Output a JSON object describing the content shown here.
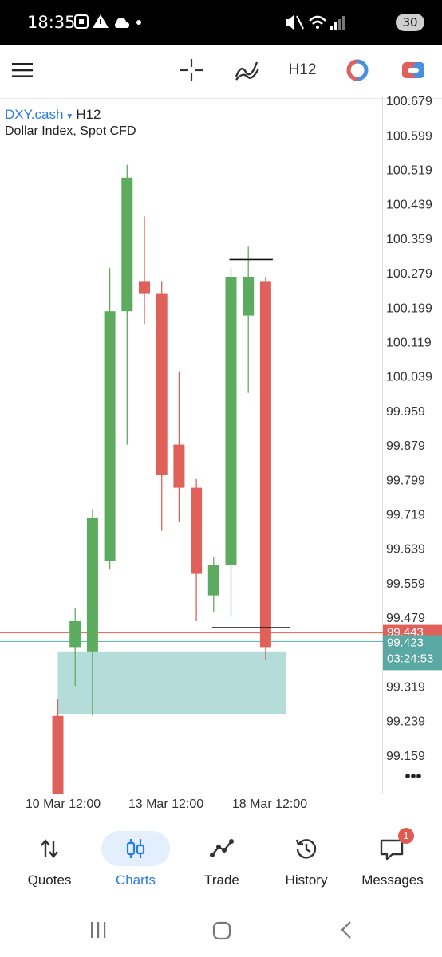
{
  "status_bar": {
    "time": "18:35",
    "battery": "30"
  },
  "toolbar": {
    "timeframe": "H12",
    "icons": [
      "menu-icon",
      "crosshair-icon",
      "indicators-icon",
      "chart-type-icon",
      "trade-toggle-icon"
    ]
  },
  "symbol": {
    "name": "DXY.cash",
    "timeframe": "H12",
    "description": "Dollar Index, Spot CFD"
  },
  "chart_data": {
    "type": "candlestick",
    "price_labels": [
      "100.679",
      "100.599",
      "100.519",
      "100.439",
      "100.359",
      "100.279",
      "100.199",
      "100.119",
      "100.039",
      "99.959",
      "99.879",
      "99.799",
      "99.719",
      "99.639",
      "99.559",
      "99.479",
      "99.319",
      "99.239",
      "99.159"
    ],
    "ylim": [
      99.07,
      100.68
    ],
    "x_labels": [
      "10 Mar 12:00",
      "13 Mar 12:00",
      "18 Mar 12:00"
    ],
    "bid_label": "99.443",
    "ask_label": "99.423",
    "countdown": "03:24:53",
    "more_menu": "•••",
    "candles": [
      {
        "open": 99.25,
        "high": 99.29,
        "low": 99.07,
        "close": 99.07
      },
      {
        "open": 99.41,
        "high": 99.5,
        "low": 99.32,
        "close": 99.47
      },
      {
        "open": 99.4,
        "high": 99.73,
        "low": 99.25,
        "close": 99.71
      },
      {
        "open": 99.61,
        "high": 100.29,
        "low": 99.59,
        "close": 100.19
      },
      {
        "open": 100.19,
        "high": 100.53,
        "low": 99.88,
        "close": 100.5
      },
      {
        "open": 100.26,
        "high": 100.41,
        "low": 100.16,
        "close": 100.23
      },
      {
        "open": 100.23,
        "high": 100.26,
        "low": 99.68,
        "close": 99.81
      },
      {
        "open": 99.88,
        "high": 100.05,
        "low": 99.7,
        "close": 99.78
      },
      {
        "open": 99.78,
        "high": 99.8,
        "low": 99.47,
        "close": 99.58
      },
      {
        "open": 99.53,
        "high": 99.62,
        "low": 99.49,
        "close": 99.6
      },
      {
        "open": 99.6,
        "high": 100.29,
        "low": 99.48,
        "close": 100.27
      },
      {
        "open": 100.18,
        "high": 100.34,
        "low": 100.0,
        "close": 100.27
      },
      {
        "open": 100.26,
        "high": 100.27,
        "low": 99.38,
        "close": 99.41
      }
    ],
    "zone": {
      "top": 99.4,
      "bottom": 99.255,
      "from_candle": 0,
      "to_candle": 13
    },
    "levels": [
      {
        "price": 100.31,
        "from_candle": 10,
        "to_candle": 12
      },
      {
        "price": 99.455,
        "from_candle": 9,
        "to_candle": 13
      }
    ],
    "colors": {
      "up": "#5dab5e",
      "down": "#e0615a",
      "zone": "#b4ddd9",
      "bid_line": "#e0615a",
      "ask_line": "#5aa8a3",
      "axis_text": "#333333"
    }
  },
  "bottom_nav": [
    {
      "label": "Quotes",
      "icon": "quotes-icon",
      "active": false
    },
    {
      "label": "Charts",
      "icon": "charts-icon",
      "active": true
    },
    {
      "label": "Trade",
      "icon": "trade-icon",
      "active": false
    },
    {
      "label": "History",
      "icon": "history-icon",
      "active": false
    },
    {
      "label": "Messages",
      "icon": "messages-icon",
      "active": false,
      "badge": "1"
    }
  ]
}
